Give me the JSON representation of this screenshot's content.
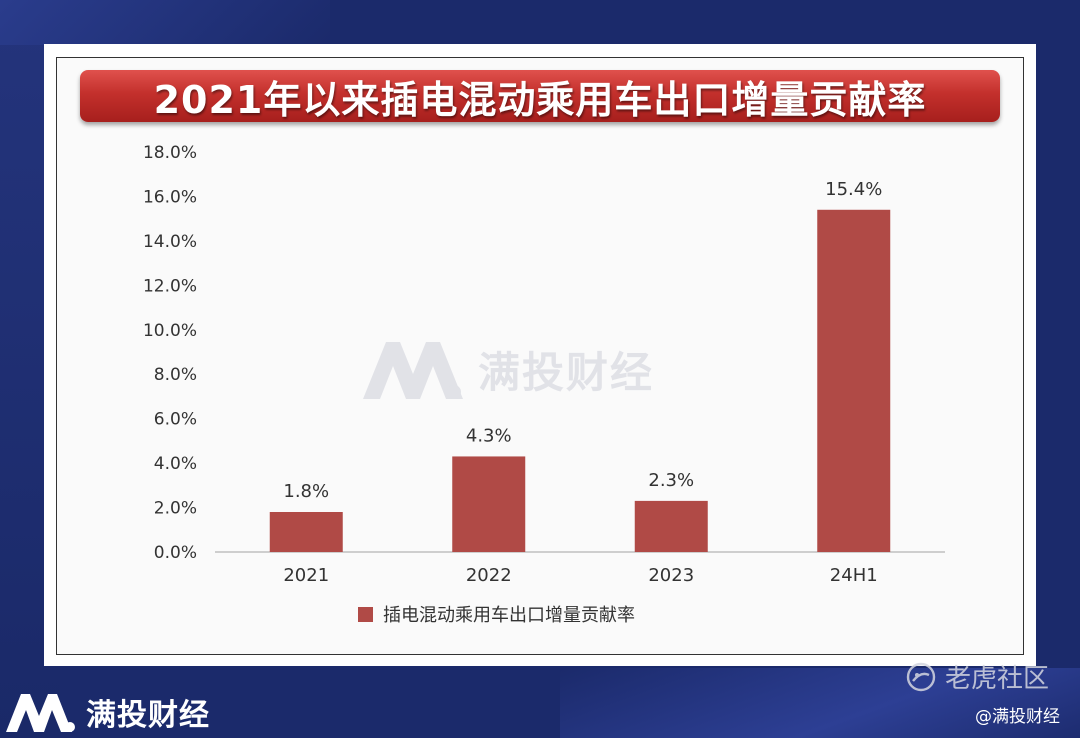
{
  "watermark_text": "满投财经",
  "brand_text": "满投财经",
  "community_text": "老虎社区",
  "handle_text": "@满投财经",
  "colors": {
    "bar": "#b04a46",
    "banner": "#c3302c",
    "background": "#1b2a6b"
  },
  "chart_data": {
    "type": "bar",
    "title": "2021年以来插电混动乘用车出口增量贡献率",
    "categories": [
      "2021",
      "2022",
      "2023",
      "24H1"
    ],
    "series": [
      {
        "name": "插电混动乘用车出口增量贡献率",
        "values": [
          1.8,
          4.3,
          2.3,
          15.4
        ]
      }
    ],
    "data_labels": [
      "1.8%",
      "4.3%",
      "2.3%",
      "15.4%"
    ],
    "y_ticks": [
      "0.0%",
      "2.0%",
      "4.0%",
      "6.0%",
      "8.0%",
      "10.0%",
      "12.0%",
      "14.0%",
      "16.0%",
      "18.0%"
    ],
    "ylim": [
      0,
      18
    ],
    "ytick_step": 2,
    "grid": false,
    "legend": "bottom-center"
  }
}
